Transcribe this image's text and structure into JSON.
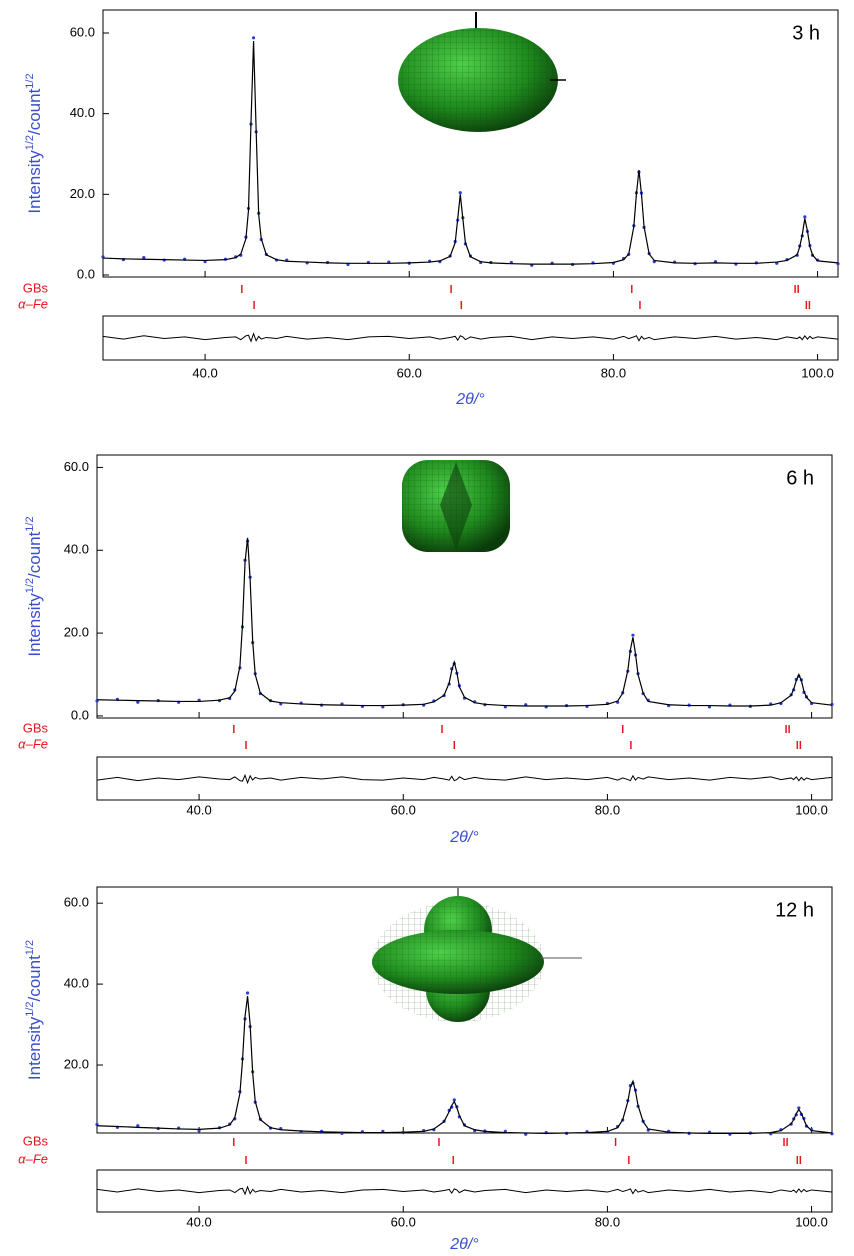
{
  "chart_data": [
    {
      "type": "line",
      "panel_label": "3 h",
      "y_label": [
        "Intensity",
        "1/2",
        "/count",
        "1/2"
      ],
      "x_label": "2θ/°",
      "xlim": [
        30,
        102
      ],
      "ylim": [
        -0.5,
        65.7
      ],
      "xticks": [
        {
          "value": 40,
          "label": "40.0"
        },
        {
          "value": 60,
          "label": "60.0"
        },
        {
          "value": 80,
          "label": "80.0"
        },
        {
          "value": 100,
          "label": "100.0"
        }
      ],
      "yticks": [
        {
          "value": 0,
          "label": "0.0"
        },
        {
          "value": 20,
          "label": "20.0"
        },
        {
          "value": 40,
          "label": "40.0"
        },
        {
          "value": 60,
          "label": "60.0"
        }
      ],
      "x": [
        30,
        32,
        34,
        36,
        38,
        40,
        42,
        43,
        43.5,
        44,
        44.25,
        44.5,
        44.75,
        45,
        45.25,
        45.5,
        46,
        47,
        48,
        50,
        52,
        54,
        56,
        58,
        60,
        62,
        63,
        64,
        64.5,
        64.75,
        65,
        65.25,
        65.5,
        66,
        67,
        68,
        70,
        72,
        74,
        76,
        78,
        80,
        81,
        81.5,
        82,
        82.25,
        82.5,
        82.75,
        83,
        83.5,
        84,
        86,
        88,
        90,
        92,
        94,
        96,
        97,
        98,
        98.25,
        98.5,
        98.75,
        99,
        99.25,
        99.5,
        100,
        102
      ],
      "series": [
        {
          "style": "dots",
          "color": "#2a3fd6",
          "values": [
            4.5,
            3.8,
            4.3,
            3.7,
            3.9,
            3.3,
            3.9,
            4.5,
            4.9,
            9.4,
            16.5,
            37.4,
            58.8,
            35.5,
            15.3,
            8.8,
            5.1,
            3.7,
            3.7,
            3.0,
            3.1,
            2.6,
            3.1,
            3.2,
            2.9,
            3.4,
            3.3,
            4.7,
            8.3,
            13.6,
            20.4,
            14.2,
            7.7,
            4.7,
            3.1,
            3.1,
            3.1,
            2.4,
            2.9,
            2.6,
            3.0,
            2.9,
            4.1,
            5.1,
            12.2,
            20.4,
            25.5,
            20.3,
            11.8,
            5.3,
            3.3,
            3.2,
            2.8,
            3.3,
            2.7,
            3.0,
            2.9,
            3.8,
            4.9,
            7.2,
            9.7,
            14.4,
            10.8,
            7.3,
            4.9,
            3.7,
            2.8
          ]
        },
        {
          "style": "line",
          "color": "#000000",
          "values": [
            4.2,
            4.0,
            3.9,
            3.8,
            3.7,
            3.6,
            3.8,
            4.3,
            5.2,
            9,
            16,
            38,
            58,
            36,
            15,
            9,
            5,
            3.8,
            3.4,
            3.2,
            3.0,
            2.9,
            2.9,
            2.9,
            3.0,
            3.2,
            3.5,
            4.6,
            8,
            14,
            20,
            14,
            8,
            4.5,
            3.3,
            3.0,
            2.8,
            2.7,
            2.7,
            2.7,
            2.8,
            3.1,
            3.8,
            5.2,
            12,
            20,
            26,
            20,
            12,
            5.2,
            3.6,
            3.0,
            2.9,
            3.0,
            2.9,
            2.9,
            3.2,
            3.6,
            5,
            7,
            10,
            14,
            11,
            7,
            5,
            3.5,
            3.0
          ]
        }
      ],
      "difference": {
        "color": "#000000",
        "ylim": [
          -4,
          4
        ],
        "values": [
          0.3,
          -0.2,
          0.4,
          -0.1,
          0.2,
          -0.3,
          0.1,
          0.2,
          -0.3,
          0.4,
          0.5,
          -0.6,
          0.8,
          -0.5,
          0.3,
          -0.2,
          0.1,
          -0.1,
          0.3,
          -0.2,
          0.1,
          -0.3,
          0.2,
          0.3,
          -0.1,
          0.2,
          -0.2,
          0.1,
          0.3,
          -0.4,
          0.4,
          0.2,
          -0.3,
          0.2,
          -0.2,
          0.1,
          0.3,
          -0.3,
          0.2,
          -0.1,
          0.2,
          -0.2,
          0.3,
          -0.1,
          0.2,
          0.4,
          -0.5,
          0.3,
          -0.2,
          0.1,
          -0.3,
          0.2,
          -0.1,
          0.3,
          -0.2,
          0.1,
          -0.3,
          0.2,
          -0.1,
          0.2,
          -0.3,
          0.4,
          -0.2,
          0.3,
          -0.1,
          0.2,
          -0.2
        ]
      },
      "reflections": [
        {
          "name": "GBs",
          "color": "#e8141c",
          "x": [
            43.6,
            64.1,
            81.8,
            97.8,
            98.1
          ]
        },
        {
          "name": "α–Fe",
          "color": "#e8141c",
          "x": [
            44.8,
            65.1,
            82.6,
            98.9,
            99.2
          ]
        }
      ]
    },
    {
      "type": "line",
      "panel_label": "6 h",
      "y_label": [
        "Intensity",
        "1/2",
        "/count",
        "1/2"
      ],
      "x_label": "2θ/°",
      "xlim": [
        30,
        102
      ],
      "ylim": [
        -0.5,
        63
      ],
      "xticks": [
        {
          "value": 40,
          "label": "40.0"
        },
        {
          "value": 60,
          "label": "60.0"
        },
        {
          "value": 80,
          "label": "80.0"
        },
        {
          "value": 100,
          "label": "100.0"
        }
      ],
      "yticks": [
        {
          "value": 0,
          "label": "0.0"
        },
        {
          "value": 20,
          "label": "20.0"
        },
        {
          "value": 40,
          "label": "40.0"
        },
        {
          "value": 60,
          "label": "60.0"
        }
      ],
      "x": [
        30,
        32,
        34,
        36,
        38,
        40,
        42,
        43,
        43.5,
        44,
        44.25,
        44.5,
        44.75,
        45,
        45.25,
        45.5,
        46,
        47,
        48,
        50,
        52,
        54,
        56,
        58,
        60,
        62,
        63,
        64,
        64.5,
        64.75,
        65,
        65.25,
        65.5,
        66,
        67,
        68,
        70,
        72,
        74,
        76,
        78,
        80,
        81,
        81.5,
        82,
        82.25,
        82.5,
        82.75,
        83,
        83.5,
        84,
        86,
        88,
        90,
        92,
        94,
        96,
        97,
        98,
        98.25,
        98.5,
        98.75,
        99,
        99.25,
        99.5,
        100,
        102
      ],
      "series": [
        {
          "style": "dots",
          "color": "#2a3fd6",
          "values": [
            3.6,
            4.0,
            3.3,
            3.7,
            3.3,
            3.8,
            3.7,
            4.2,
            6.3,
            11.6,
            21.5,
            37.6,
            42.2,
            33.5,
            17.7,
            10.2,
            5.4,
            3.7,
            2.9,
            3.1,
            2.6,
            2.9,
            2.3,
            2.2,
            2.7,
            2.6,
            3.6,
            4.9,
            7.7,
            11.4,
            12.6,
            10.3,
            7.3,
            4.3,
            3.4,
            2.7,
            2.2,
            2.7,
            2.2,
            2.5,
            2.3,
            3.0,
            3.3,
            5.6,
            10.8,
            15.6,
            19.5,
            14.7,
            10.2,
            5.4,
            3.8,
            2.5,
            2.6,
            2.2,
            2.6,
            2.3,
            2.9,
            3.0,
            5.1,
            6.3,
            8.8,
            9.6,
            8.7,
            5.7,
            4.6,
            3.0,
            2.8
          ]
        },
        {
          "style": "line",
          "color": "#000000",
          "values": [
            3.9,
            3.8,
            3.7,
            3.6,
            3.5,
            3.5,
            3.8,
            4.4,
            6,
            12,
            22,
            37,
            43,
            33,
            18,
            10,
            5.5,
            3.6,
            3.2,
            2.9,
            2.7,
            2.6,
            2.5,
            2.5,
            2.6,
            2.8,
            3.4,
            5,
            8,
            11,
            13,
            10.5,
            7,
            4.5,
            3.2,
            2.8,
            2.5,
            2.4,
            2.4,
            2.4,
            2.5,
            2.8,
            3.6,
            5.5,
            11,
            16,
            19,
            15,
            10,
            5.5,
            3.5,
            2.7,
            2.5,
            2.5,
            2.4,
            2.4,
            2.6,
            3.2,
            5,
            6.5,
            8.5,
            10,
            8.5,
            6,
            4.5,
            3.2,
            2.6
          ]
        }
      ],
      "difference": {
        "color": "#000000",
        "ylim": [
          -4,
          4
        ],
        "values": [
          -0.3,
          0.2,
          -0.4,
          0.1,
          -0.2,
          0.3,
          -0.1,
          -0.2,
          0.3,
          -0.4,
          -0.5,
          0.6,
          -0.8,
          0.5,
          -0.3,
          0.2,
          -0.1,
          0.1,
          -0.3,
          0.2,
          -0.1,
          0.3,
          -0.2,
          -0.3,
          0.1,
          -0.2,
          0.2,
          -0.1,
          -0.3,
          0.4,
          -0.4,
          -0.2,
          0.3,
          -0.2,
          0.2,
          -0.1,
          -0.3,
          0.3,
          -0.2,
          0.1,
          -0.2,
          0.2,
          -0.3,
          0.1,
          -0.2,
          -0.4,
          0.5,
          -0.3,
          0.2,
          -0.1,
          0.3,
          -0.2,
          0.1,
          -0.3,
          0.2,
          -0.1,
          0.3,
          -0.2,
          0.1,
          -0.2,
          0.3,
          -0.4,
          0.2,
          -0.3,
          0.1,
          -0.2,
          0.2
        ]
      },
      "reflections": [
        {
          "name": "GBs",
          "color": "#e8141c",
          "x": [
            43.4,
            63.8,
            81.5,
            97.5,
            97.8
          ]
        },
        {
          "name": "α–Fe",
          "color": "#e8141c",
          "x": [
            44.6,
            65.0,
            82.3,
            98.6,
            98.9
          ]
        }
      ]
    },
    {
      "type": "line",
      "panel_label": "12 h",
      "y_label": [
        "Intensity",
        "1/2",
        "/count",
        "1/2"
      ],
      "x_label": "2θ/°",
      "xlim": [
        30,
        102
      ],
      "ylim": [
        3.2,
        64
      ],
      "xticks": [
        {
          "value": 40,
          "label": "40.0"
        },
        {
          "value": 60,
          "label": "60.0"
        },
        {
          "value": 80,
          "label": "80.0"
        },
        {
          "value": 100,
          "label": "100.0"
        }
      ],
      "yticks": [
        {
          "value": 20,
          "label": "20.0"
        },
        {
          "value": 40,
          "label": "40.0"
        },
        {
          "value": 60,
          "label": "60.0"
        }
      ],
      "x": [
        30,
        32,
        34,
        36,
        38,
        40,
        42,
        43,
        43.5,
        44,
        44.25,
        44.5,
        44.75,
        45,
        45.25,
        45.5,
        46,
        47,
        48,
        50,
        52,
        54,
        56,
        58,
        60,
        62,
        63,
        64,
        64.5,
        64.75,
        65,
        65.25,
        65.5,
        66,
        67,
        68,
        70,
        72,
        74,
        76,
        78,
        80,
        81,
        81.5,
        82,
        82.25,
        82.5,
        82.75,
        83,
        83.5,
        84,
        86,
        88,
        90,
        92,
        94,
        96,
        97,
        98,
        98.25,
        98.5,
        98.75,
        99,
        99.25,
        99.5,
        100,
        102
      ],
      "series": [
        {
          "style": "dots",
          "color": "#2a3fd6",
          "values": [
            5.3,
            4.6,
            5.0,
            4.3,
            4.4,
            3.8,
            4.5,
            5.4,
            6.7,
            13.4,
            21.5,
            31.4,
            37.8,
            29.5,
            18.3,
            10.8,
            6.6,
            4.4,
            4.3,
            3.5,
            3.6,
            3.1,
            3.5,
            3.6,
            3.3,
            3.8,
            4.0,
            6.1,
            8.8,
            9.6,
            11.4,
            9.7,
            7.2,
            5.2,
            3.8,
            3.7,
            3.6,
            2.9,
            3.3,
            3.1,
            3.5,
            3.4,
            4.8,
            6.4,
            11.2,
            14.9,
            15.5,
            13.8,
            9.8,
            6.1,
            3.9,
            3.6,
            3.1,
            3.4,
            2.9,
            3.2,
            3.0,
            4.0,
            5.4,
            6.7,
            7.7,
            9.4,
            7.8,
            6.8,
            4.9,
            4.0,
            3.0
          ]
        },
        {
          "style": "line",
          "color": "#000000",
          "values": [
            5.0,
            4.8,
            4.6,
            4.4,
            4.2,
            4.1,
            4.4,
            5.2,
            7,
            13,
            21,
            32,
            37,
            30,
            18,
            11,
            6.5,
            4.5,
            4.0,
            3.7,
            3.5,
            3.4,
            3.3,
            3.3,
            3.4,
            3.6,
            4.2,
            6,
            8.5,
            10,
            11,
            9.5,
            7.5,
            5,
            4.0,
            3.6,
            3.3,
            3.2,
            3.1,
            3.2,
            3.3,
            3.6,
            4.5,
            6.5,
            11,
            14.5,
            16,
            13.5,
            10,
            6,
            4.2,
            3.4,
            3.2,
            3.1,
            3.1,
            3.1,
            3.3,
            3.8,
            5.5,
            6.5,
            8,
            9,
            8,
            6.5,
            5,
            3.8,
            3.2
          ]
        }
      ],
      "difference": {
        "color": "#000000",
        "ylim": [
          -4,
          4
        ],
        "values": [
          0.3,
          -0.2,
          0.4,
          -0.1,
          0.2,
          -0.3,
          0.1,
          0.2,
          -0.3,
          0.4,
          0.5,
          -0.6,
          0.8,
          -0.5,
          0.3,
          -0.2,
          0.1,
          -0.1,
          0.3,
          -0.2,
          0.1,
          -0.3,
          0.2,
          0.3,
          -0.1,
          0.2,
          -0.2,
          0.1,
          0.3,
          -0.4,
          0.4,
          0.2,
          -0.3,
          0.2,
          -0.2,
          0.1,
          0.3,
          -0.3,
          0.2,
          -0.1,
          0.2,
          -0.2,
          0.3,
          -0.1,
          0.2,
          0.4,
          -0.5,
          0.3,
          -0.2,
          0.1,
          -0.3,
          0.2,
          -0.1,
          0.3,
          -0.2,
          0.1,
          -0.3,
          0.2,
          -0.1,
          0.2,
          -0.3,
          0.4,
          -0.2,
          0.3,
          -0.1,
          0.2,
          -0.2
        ]
      },
      "reflections": [
        {
          "name": "GBs",
          "color": "#e8141c",
          "x": [
            43.4,
            63.5,
            80.8,
            97.3,
            97.6
          ]
        },
        {
          "name": "α–Fe",
          "color": "#e8141c",
          "x": [
            44.6,
            64.9,
            82.1,
            98.6,
            98.9
          ]
        }
      ]
    }
  ]
}
